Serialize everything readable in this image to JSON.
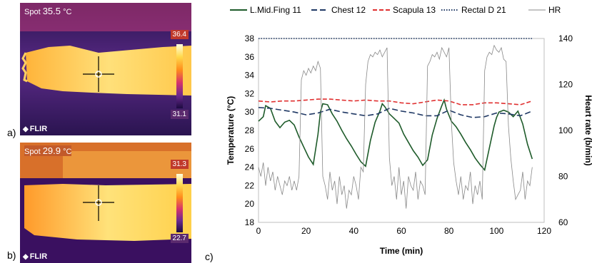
{
  "panels": {
    "a": {
      "label": "a)",
      "spot_label": "Spot",
      "spot_value": "35.5",
      "spot_unit": "°C",
      "scale_max": "36.4",
      "scale_min": "31.1",
      "brand": "FLIR"
    },
    "b": {
      "label": "b)",
      "spot_label": "Spot",
      "spot_value": "29.9",
      "spot_unit": "°C",
      "scale_max": "31.3",
      "scale_min": "22.7",
      "brand": "FLIR"
    },
    "c": {
      "label": "c)"
    }
  },
  "chart_data": {
    "type": "line",
    "xlabel": "Time (min)",
    "ylabel": "Temperature (°C)",
    "y2label": "Heart rate (b/min)",
    "xlim": [
      0,
      120
    ],
    "ylim": [
      18,
      38
    ],
    "y2lim": [
      60,
      140
    ],
    "xticks": [
      0,
      20,
      40,
      60,
      80,
      100,
      120
    ],
    "yticks": [
      18,
      20,
      22,
      24,
      26,
      28,
      30,
      32,
      34,
      36,
      38
    ],
    "y2ticks": [
      60,
      80,
      100,
      120,
      140
    ],
    "grid": false,
    "legend_position": "top",
    "series": [
      {
        "name": "L.Mid.Fing 11",
        "axis": "left",
        "color": "#1e5b2a",
        "dash": "solid",
        "x": [
          0,
          2,
          3,
          5,
          7,
          9,
          11,
          13,
          15,
          17,
          19,
          21,
          23,
          25,
          26,
          27,
          29,
          31,
          33,
          35,
          37,
          39,
          41,
          43,
          45,
          47,
          49,
          51,
          52,
          53,
          55,
          57,
          59,
          61,
          63,
          65,
          67,
          69,
          71,
          73,
          75,
          77,
          78,
          79,
          81,
          83,
          85,
          87,
          89,
          91,
          93,
          95,
          97,
          99,
          100,
          101,
          103,
          105,
          107,
          109,
          111,
          113,
          115
        ],
        "y": [
          29.0,
          29.5,
          30.7,
          30.4,
          29.0,
          28.3,
          28.9,
          29.1,
          28.6,
          27.3,
          26.2,
          25.1,
          24.3,
          27.6,
          30.0,
          30.9,
          30.8,
          29.8,
          29.0,
          28.0,
          27.1,
          26.3,
          25.4,
          24.6,
          24.1,
          26.9,
          28.9,
          30.1,
          30.9,
          30.6,
          29.8,
          29.3,
          28.8,
          27.6,
          26.7,
          25.8,
          25.1,
          24.2,
          24.8,
          27.5,
          29.3,
          30.7,
          31.3,
          30.3,
          29.0,
          28.4,
          27.6,
          26.7,
          25.9,
          25.0,
          24.3,
          23.7,
          26.1,
          28.5,
          29.4,
          30.0,
          30.2,
          30.0,
          29.5,
          30.1,
          28.7,
          26.5,
          24.9
        ]
      },
      {
        "name": "Chest 12",
        "axis": "left",
        "color": "#1f3864",
        "dash": "long-dash",
        "x": [
          0,
          5,
          10,
          15,
          20,
          25,
          30,
          35,
          40,
          45,
          50,
          55,
          60,
          65,
          70,
          75,
          80,
          85,
          90,
          95,
          100,
          105,
          110,
          115
        ],
        "y": [
          30.5,
          30.4,
          30.2,
          30.0,
          29.7,
          29.9,
          30.3,
          30.0,
          29.8,
          29.6,
          29.8,
          30.4,
          30.1,
          29.9,
          29.6,
          29.6,
          30.2,
          29.7,
          29.4,
          29.5,
          29.9,
          29.8,
          29.6,
          30.1
        ]
      },
      {
        "name": "Scapula 13",
        "axis": "left",
        "color": "#e03030",
        "dash": "dash",
        "x": [
          0,
          5,
          10,
          15,
          20,
          25,
          30,
          35,
          40,
          45,
          50,
          55,
          60,
          65,
          70,
          75,
          80,
          85,
          90,
          95,
          100,
          105,
          110,
          115
        ],
        "y": [
          31.2,
          31.1,
          31.2,
          31.2,
          31.3,
          31.4,
          31.4,
          31.3,
          31.2,
          31.3,
          31.2,
          31.2,
          31.0,
          30.9,
          31.1,
          31.3,
          31.2,
          30.8,
          30.8,
          31.0,
          31.0,
          30.9,
          30.8,
          31.2
        ]
      },
      {
        "name": "Rectal D 21",
        "axis": "left",
        "color": "#1f3864",
        "dash": "dot",
        "x": [
          0,
          20,
          40,
          60,
          80,
          100,
          115
        ],
        "y": [
          38.0,
          38.0,
          38.0,
          38.0,
          38.0,
          38.0,
          38.0
        ]
      },
      {
        "name": "HR",
        "axis": "right",
        "color": "#888888",
        "dash": "solid",
        "x": [
          0,
          1,
          2,
          3,
          4,
          5,
          6,
          7,
          8,
          9,
          10,
          11,
          12,
          13,
          14,
          15,
          16,
          17,
          18,
          19,
          20,
          21,
          22,
          23,
          24,
          25,
          26,
          27,
          28,
          29,
          30,
          31,
          32,
          33,
          34,
          35,
          36,
          37,
          38,
          39,
          40,
          41,
          42,
          43,
          44,
          45,
          46,
          47,
          48,
          49,
          50,
          51,
          52,
          53,
          54,
          55,
          56,
          57,
          58,
          59,
          60,
          61,
          62,
          63,
          64,
          65,
          66,
          67,
          68,
          69,
          70,
          71,
          72,
          73,
          74,
          75,
          76,
          77,
          78,
          79,
          80,
          81,
          82,
          83,
          84,
          85,
          86,
          87,
          88,
          89,
          90,
          91,
          92,
          93,
          94,
          95,
          96,
          97,
          98,
          99,
          100,
          101,
          102,
          103,
          104,
          105,
          106,
          107,
          108,
          109,
          110,
          111,
          112,
          113,
          114,
          115
        ],
        "y": [
          84,
          80,
          86,
          76,
          84,
          78,
          82,
          74,
          80,
          76,
          72,
          78,
          76,
          80,
          74,
          78,
          74,
          80,
          122,
          126,
          124,
          127,
          125,
          128,
          126,
          130,
          127,
          80,
          76,
          70,
          82,
          74,
          78,
          68,
          80,
          72,
          76,
          66,
          74,
          72,
          80,
          76,
          70,
          84,
          82,
          120,
          130,
          133,
          132,
          134,
          133,
          135,
          132,
          134,
          136,
          88,
          76,
          80,
          70,
          84,
          72,
          78,
          66,
          80,
          76,
          74,
          82,
          70,
          78,
          76,
          72,
          128,
          130,
          133,
          132,
          134,
          131,
          136,
          134,
          132,
          136,
          104,
          86,
          78,
          72,
          80,
          70,
          76,
          74,
          82,
          68,
          76,
          72,
          78,
          70,
          126,
          132,
          134,
          133,
          137,
          135,
          134,
          136,
          131,
          130,
          102,
          88,
          78,
          70,
          72,
          74,
          82,
          70,
          78,
          76,
          84
        ]
      }
    ]
  }
}
